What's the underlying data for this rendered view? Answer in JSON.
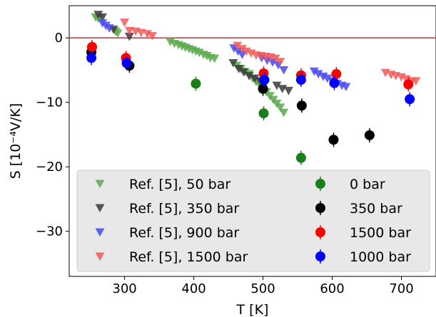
{
  "chart_data": {
    "type": "scatter",
    "title": "",
    "xlabel": "T [K]",
    "ylabel": "S [10⁻⁴V/K]",
    "xlim": [
      220,
      750
    ],
    "ylim": [
      -37,
      5
    ],
    "xticks": [
      300,
      400,
      500,
      600,
      700
    ],
    "xtick_labels": [
      "300",
      "400",
      "500",
      "600",
      "700"
    ],
    "yticks": [
      0,
      -10,
      -20,
      -30
    ],
    "ytick_labels": [
      "0",
      "−10",
      "−20",
      "−30"
    ],
    "reference_line": {
      "y": 0,
      "color": "#d62728"
    },
    "grid": false,
    "legend_placement": "lower-left",
    "series": [
      {
        "name": "Ref. [5], 50 bar",
        "marker": "triangle-down",
        "color": "#59a84b",
        "points": [
          [
            258,
            3.2
          ],
          [
            262,
            3.0
          ],
          [
            287,
            1.0
          ],
          [
            290,
            0.7
          ],
          [
            366,
            -0.6
          ],
          [
            372,
            -0.9
          ],
          [
            378,
            -1.1
          ],
          [
            383,
            -1.3
          ],
          [
            388,
            -1.5
          ],
          [
            393,
            -1.7
          ],
          [
            398,
            -1.9
          ],
          [
            403,
            -2.1
          ],
          [
            408,
            -2.3
          ],
          [
            414,
            -2.6
          ],
          [
            419,
            -2.8
          ],
          [
            424,
            -3.1
          ],
          [
            430,
            -3.2
          ],
          [
            462,
            -4.3
          ],
          [
            468,
            -4.8
          ],
          [
            474,
            -5.3
          ],
          [
            480,
            -5.6
          ],
          [
            485,
            -6.3
          ],
          [
            490,
            -6.8
          ],
          [
            495,
            -7.3
          ],
          [
            500,
            -7.8
          ],
          [
            505,
            -8.4
          ],
          [
            510,
            -9.0
          ],
          [
            515,
            -9.6
          ],
          [
            520,
            -10.2
          ],
          [
            525,
            -10.8
          ],
          [
            530,
            -11.6
          ]
        ]
      },
      {
        "name": "Ref. [5], 350 bar",
        "marker": "triangle-down",
        "color": "#3a3a3a",
        "points": [
          [
            262,
            3.6
          ],
          [
            268,
            3.2
          ],
          [
            284,
            1.3
          ],
          [
            307,
            0.2
          ],
          [
            457,
            -3.9
          ],
          [
            465,
            -4.8
          ],
          [
            472,
            -5.3
          ],
          [
            480,
            -5.9
          ],
          [
            488,
            -6.3
          ],
          [
            496,
            -6.7
          ],
          [
            520,
            -7.4
          ],
          [
            528,
            -7.9
          ],
          [
            537,
            -8.2
          ]
        ]
      },
      {
        "name": "Ref. [5], 900 bar",
        "marker": "triangle-down",
        "color": "#4747f2",
        "points": [
          [
            268,
            2.3
          ],
          [
            273,
            1.9
          ],
          [
            278,
            1.5
          ],
          [
            458,
            -1.6
          ],
          [
            464,
            -2.1
          ],
          [
            470,
            -2.6
          ],
          [
            498,
            -3.1
          ],
          [
            506,
            -3.5
          ],
          [
            514,
            -3.8
          ],
          [
            522,
            -4.2
          ],
          [
            530,
            -5.0
          ],
          [
            574,
            -5.2
          ],
          [
            580,
            -5.6
          ],
          [
            587,
            -6.0
          ],
          [
            593,
            -6.3
          ],
          [
            600,
            -6.7
          ],
          [
            607,
            -7.1
          ],
          [
            614,
            -7.4
          ],
          [
            620,
            -7.6
          ]
        ]
      },
      {
        "name": "Ref. [5], 1500 bar",
        "marker": "triangle-down",
        "color": "#f25959",
        "points": [
          [
            300,
            2.4
          ],
          [
            307,
            1.1
          ],
          [
            316,
            1.0
          ],
          [
            324,
            0.8
          ],
          [
            333,
            0.6
          ],
          [
            340,
            0.3
          ],
          [
            463,
            -1.2
          ],
          [
            470,
            -1.7
          ],
          [
            476,
            -2.1
          ],
          [
            483,
            -2.4
          ],
          [
            490,
            -2.7
          ],
          [
            497,
            -2.8
          ],
          [
            504,
            -2.9
          ],
          [
            511,
            -3.0
          ],
          [
            518,
            -3.2
          ],
          [
            525,
            -3.7
          ],
          [
            677,
            -5.4
          ],
          [
            685,
            -5.7
          ],
          [
            692,
            -5.9
          ],
          [
            700,
            -6.1
          ],
          [
            707,
            -6.4
          ],
          [
            715,
            -6.7
          ],
          [
            721,
            -6.7
          ]
        ]
      },
      {
        "name": "0 bar",
        "marker": "circle",
        "color": "#1a7f1a",
        "points": [
          [
            403,
            -7.1
          ],
          [
            501,
            -11.7
          ],
          [
            555,
            -18.6
          ]
        ]
      },
      {
        "name": "350 bar",
        "marker": "circle",
        "color": "#000000",
        "points": [
          [
            252,
            -2.2
          ],
          [
            307,
            -4.3
          ],
          [
            500,
            -7.9
          ],
          [
            556,
            -10.5
          ],
          [
            602,
            -15.8
          ],
          [
            654,
            -15.1
          ]
        ]
      },
      {
        "name": "1500 bar",
        "marker": "circle",
        "color": "#ff0000",
        "points": [
          [
            253,
            -1.4
          ],
          [
            302,
            -3.1
          ],
          [
            501,
            -5.5
          ],
          [
            555,
            -5.8
          ],
          [
            606,
            -5.6
          ],
          [
            710,
            -7.2
          ]
        ]
      },
      {
        "name": "1000 bar",
        "marker": "circle",
        "color": "#0000ff",
        "points": [
          [
            252,
            -3.1
          ],
          [
            303,
            -3.9
          ],
          [
            502,
            -6.5
          ],
          [
            555,
            -6.5
          ],
          [
            603,
            -7.0
          ],
          [
            712,
            -9.5
          ]
        ]
      }
    ],
    "legend_order": [
      0,
      4,
      1,
      5,
      2,
      6,
      3,
      7
    ]
  }
}
